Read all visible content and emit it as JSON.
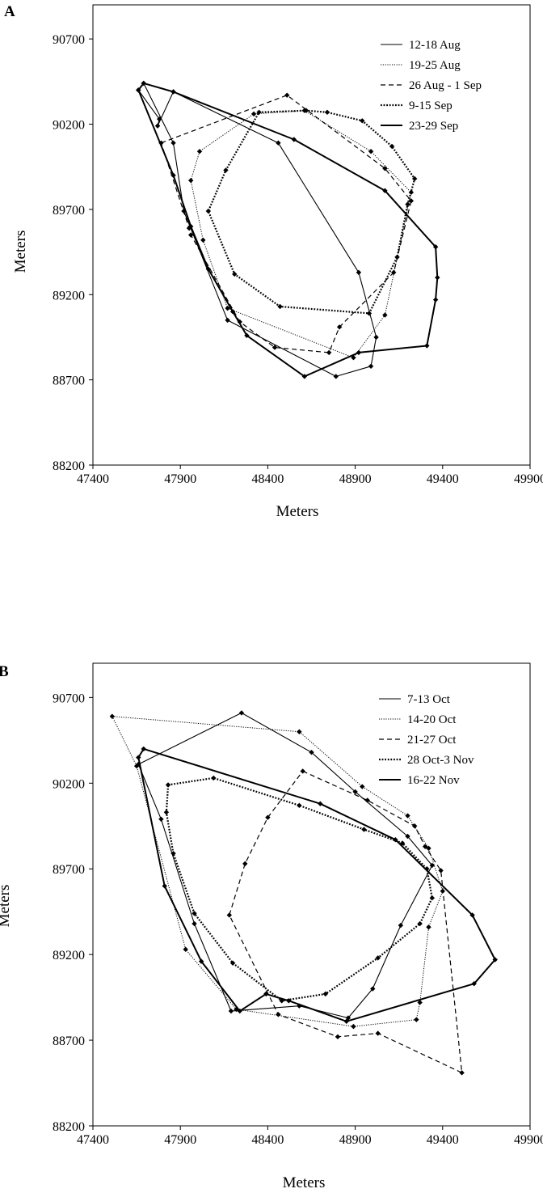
{
  "chart_data": [
    {
      "panel_label": "A",
      "type": "line",
      "xlabel": "Meters",
      "ylabel": "Meters",
      "xlim": [
        47400,
        49900
      ],
      "ylim": [
        88200,
        90900
      ],
      "xticks": [
        "47400",
        "47900",
        "48400",
        "48900",
        "49400",
        "49900"
      ],
      "yticks": [
        "88200",
        "88700",
        "89200",
        "89700",
        "90200",
        "90700"
      ],
      "grid": false,
      "legend_position": "top-right",
      "series": [
        {
          "name": "12-18 Aug",
          "style": "solid-thin",
          "points": [
            [
              47690,
              90440
            ],
            [
              47660,
              90400
            ],
            [
              47780,
              90230
            ],
            [
              47770,
              90190
            ],
            [
              47860,
              90390
            ],
            [
              48460,
              90090
            ],
            [
              48920,
              89330
            ],
            [
              49020,
              88950
            ],
            [
              48990,
              88780
            ],
            [
              48790,
              88720
            ],
            [
              48170,
              89050
            ],
            [
              47920,
              89690
            ],
            [
              47860,
              90090
            ]
          ]
        },
        {
          "name": "19-25 Aug",
          "style": "dotted-thin",
          "points": [
            [
              48610,
              90280
            ],
            [
              48990,
              90040
            ],
            [
              49220,
              89800
            ],
            [
              49070,
              89080
            ],
            [
              48890,
              88830
            ],
            [
              48170,
              89120
            ],
            [
              48030,
              89520
            ],
            [
              47960,
              89870
            ],
            [
              48010,
              90040
            ],
            [
              48320,
              90260
            ]
          ]
        },
        {
          "name": "26 Aug - 1 Sep",
          "style": "dashed",
          "points": [
            [
              47790,
              90090
            ],
            [
              48510,
              90370
            ],
            [
              49070,
              89940
            ],
            [
              49220,
              89750
            ],
            [
              49120,
              89330
            ],
            [
              48810,
              89010
            ],
            [
              48750,
              88860
            ],
            [
              48440,
              88890
            ],
            [
              48240,
              89040
            ],
            [
              47960,
              89550
            ],
            [
              47950,
              89590
            ]
          ]
        },
        {
          "name": "9-15 Sep",
          "style": "dotted-thick",
          "points": [
            [
              48740,
              90270
            ],
            [
              48620,
              90280
            ],
            [
              48350,
              90270
            ],
            [
              48160,
              89930
            ],
            [
              48060,
              89690
            ],
            [
              48210,
              89320
            ],
            [
              48470,
              89130
            ],
            [
              48980,
              89090
            ],
            [
              49140,
              89420
            ],
            [
              49200,
              89730
            ],
            [
              49240,
              89880
            ],
            [
              49110,
              90070
            ],
            [
              48940,
              90220
            ]
          ]
        },
        {
          "name": "23-29 Sep",
          "style": "solid-thick",
          "points": [
            [
              47690,
              90440
            ],
            [
              47860,
              90390
            ],
            [
              48550,
              90110
            ],
            [
              49070,
              89810
            ],
            [
              49360,
              89480
            ],
            [
              49370,
              89300
            ],
            [
              49360,
              89170
            ],
            [
              49310,
              88900
            ],
            [
              48920,
              88860
            ],
            [
              48610,
              88720
            ],
            [
              48280,
              88960
            ],
            [
              48200,
              89100
            ],
            [
              48060,
              89350
            ],
            [
              47960,
              89600
            ],
            [
              47860,
              89900
            ],
            [
              47660,
              90400
            ]
          ]
        }
      ]
    },
    {
      "panel_label": "B",
      "type": "line",
      "xlabel": "Meters",
      "ylabel": "Meters",
      "xlim": [
        47400,
        49900
      ],
      "ylim": [
        88200,
        90900
      ],
      "xticks": [
        "47400",
        "47900",
        "48400",
        "48900",
        "49400",
        "49900"
      ],
      "yticks": [
        "88200",
        "88700",
        "89200",
        "89700",
        "90200",
        "90700"
      ],
      "grid": false,
      "legend_position": "top-right",
      "series": [
        {
          "name": "7-13 Oct",
          "style": "solid-thin",
          "points": [
            [
              48250,
              90610
            ],
            [
              48650,
              90380
            ],
            [
              48900,
              90150
            ],
            [
              49200,
              89890
            ],
            [
              49340,
              89720
            ],
            [
              49160,
              89370
            ],
            [
              49000,
              89000
            ],
            [
              48860,
              88830
            ],
            [
              48580,
              88900
            ],
            [
              48190,
              88870
            ],
            [
              47980,
              89380
            ],
            [
              47790,
              89990
            ],
            [
              47660,
              90310
            ]
          ]
        },
        {
          "name": "14-20 Oct",
          "style": "dotted-thin",
          "points": [
            [
              47510,
              90590
            ],
            [
              48580,
              90500
            ],
            [
              48940,
              90180
            ],
            [
              49200,
              90010
            ],
            [
              49320,
              89820
            ],
            [
              49400,
              89570
            ],
            [
              49320,
              89360
            ],
            [
              49270,
              88920
            ],
            [
              49250,
              88820
            ],
            [
              48890,
              88780
            ],
            [
              48220,
              88880
            ],
            [
              47930,
              89230
            ],
            [
              47650,
              90300
            ]
          ]
        },
        {
          "name": "21-27 Oct",
          "style": "dashed",
          "points": [
            [
              48600,
              90270
            ],
            [
              48970,
              90100
            ],
            [
              49240,
              89950
            ],
            [
              49300,
              89830
            ],
            [
              49390,
              89690
            ],
            [
              49510,
              88510
            ],
            [
              49030,
              88740
            ],
            [
              48800,
              88720
            ],
            [
              48460,
              88850
            ],
            [
              48180,
              89430
            ],
            [
              48270,
              89730
            ],
            [
              48400,
              90000
            ]
          ]
        },
        {
          "name": "28 Oct-3 Nov",
          "style": "dotted-thick",
          "points": [
            [
              47830,
              90190
            ],
            [
              48090,
              90230
            ],
            [
              48580,
              90070
            ],
            [
              48950,
              89930
            ],
            [
              49170,
              89850
            ],
            [
              49310,
              89700
            ],
            [
              49340,
              89530
            ],
            [
              49270,
              89380
            ],
            [
              49030,
              89180
            ],
            [
              48730,
              88970
            ],
            [
              48480,
              88930
            ],
            [
              48200,
              89150
            ],
            [
              47980,
              89440
            ],
            [
              47860,
              89790
            ],
            [
              47820,
              90030
            ]
          ]
        },
        {
          "name": "16-22 Nov",
          "style": "solid-thick",
          "points": [
            [
              47690,
              90400
            ],
            [
              48700,
              90080
            ],
            [
              49130,
              89870
            ],
            [
              49570,
              89430
            ],
            [
              49700,
              89170
            ],
            [
              49580,
              89030
            ],
            [
              48850,
              88810
            ],
            [
              48520,
              88930
            ],
            [
              48390,
              88970
            ],
            [
              48240,
              88870
            ],
            [
              48020,
              89160
            ],
            [
              47810,
              89600
            ],
            [
              47660,
              90350
            ]
          ]
        }
      ]
    }
  ]
}
